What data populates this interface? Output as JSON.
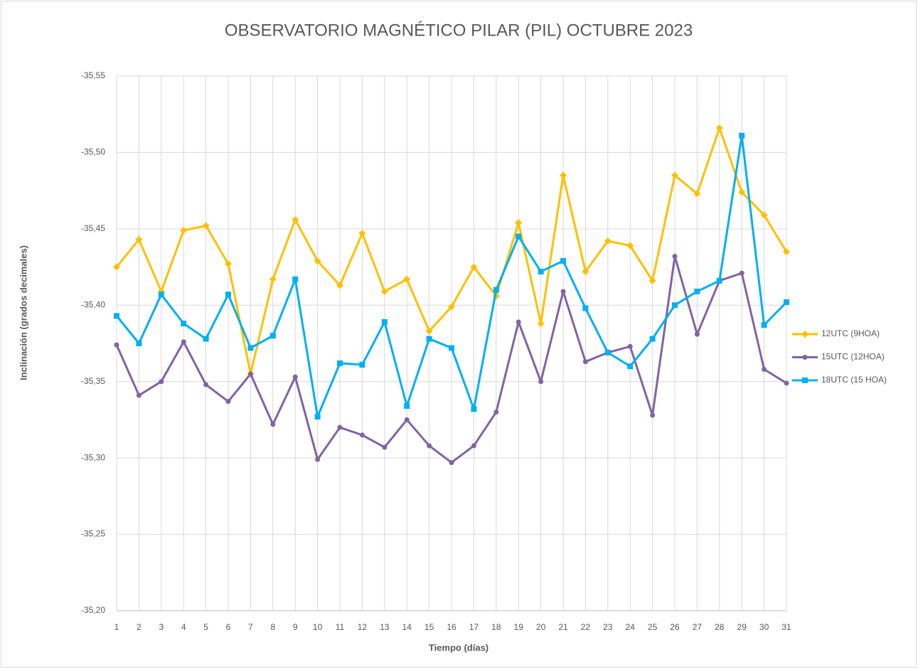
{
  "chart_data": {
    "type": "line",
    "title": "OBSERVATORIO MAGNÉTICO PILAR (PIL) OCTUBRE 2023",
    "x_label": "Tiempo (días)",
    "y_label": "Inclinación (grados decimales)",
    "categories": [
      "1",
      "2",
      "3",
      "4",
      "5",
      "6",
      "7",
      "8",
      "9",
      "10",
      "11",
      "12",
      "13",
      "14",
      "15",
      "16",
      "17",
      "18",
      "19",
      "20",
      "21",
      "22",
      "23",
      "24",
      "25",
      "26",
      "27",
      "28",
      "29",
      "30",
      "31"
    ],
    "series": [
      {
        "name": "12UTC (9HOA)",
        "color": "#FFC000",
        "marker": "diamond",
        "values": [
          -35.425,
          -35.443,
          -35.409,
          -35.449,
          -35.452,
          -35.427,
          -35.355,
          -35.417,
          -35.456,
          -35.429,
          -35.413,
          -35.447,
          -35.409,
          -35.417,
          -35.383,
          -35.399,
          -35.425,
          -35.406,
          -35.454,
          -35.388,
          -35.485,
          -35.422,
          -35.442,
          -35.439,
          -35.416,
          -35.485,
          -35.473,
          -35.516,
          -35.474,
          -35.459,
          -35.435
        ]
      },
      {
        "name": "15UTC (12HOA)",
        "color": "#8064A2",
        "marker": "circle",
        "values": [
          -35.374,
          -35.341,
          -35.35,
          -35.376,
          -35.348,
          -35.337,
          -35.355,
          -35.322,
          -35.353,
          -35.299,
          -35.32,
          -35.315,
          -35.307,
          -35.325,
          -35.308,
          -35.297,
          -35.308,
          -35.33,
          -35.389,
          -35.35,
          -35.409,
          -35.363,
          -35.369,
          -35.373,
          -35.328,
          -35.432,
          -35.381,
          -35.416,
          -35.421,
          -35.358,
          -35.349
        ]
      },
      {
        "name": "18UTC (15 HOA)",
        "color": "#00B0F0",
        "marker": "square",
        "values": [
          -35.393,
          -35.375,
          -35.407,
          -35.388,
          -35.378,
          -35.407,
          -35.372,
          -35.38,
          -35.417,
          -35.327,
          -35.362,
          -35.361,
          -35.389,
          -35.334,
          -35.378,
          -35.372,
          -35.332,
          -35.41,
          -35.445,
          -35.422,
          -35.429,
          -35.398,
          -35.369,
          -35.36,
          -35.378,
          -35.4,
          -35.409,
          -35.416,
          -35.511,
          -35.387,
          -35.402
        ]
      }
    ],
    "ylim": [
      -35.2,
      -35.55
    ],
    "yticks": [
      {
        "value": -35.2,
        "label": "-35,20"
      },
      {
        "value": -35.25,
        "label": "-35,25"
      },
      {
        "value": -35.3,
        "label": "-35,30"
      },
      {
        "value": -35.35,
        "label": "-35,35"
      },
      {
        "value": -35.4,
        "label": "-35,40"
      },
      {
        "value": -35.45,
        "label": "-35,45"
      },
      {
        "value": -35.5,
        "label": "-35,50"
      },
      {
        "value": -35.55,
        "label": "-35,55"
      }
    ],
    "grid": true,
    "legend": "right"
  }
}
